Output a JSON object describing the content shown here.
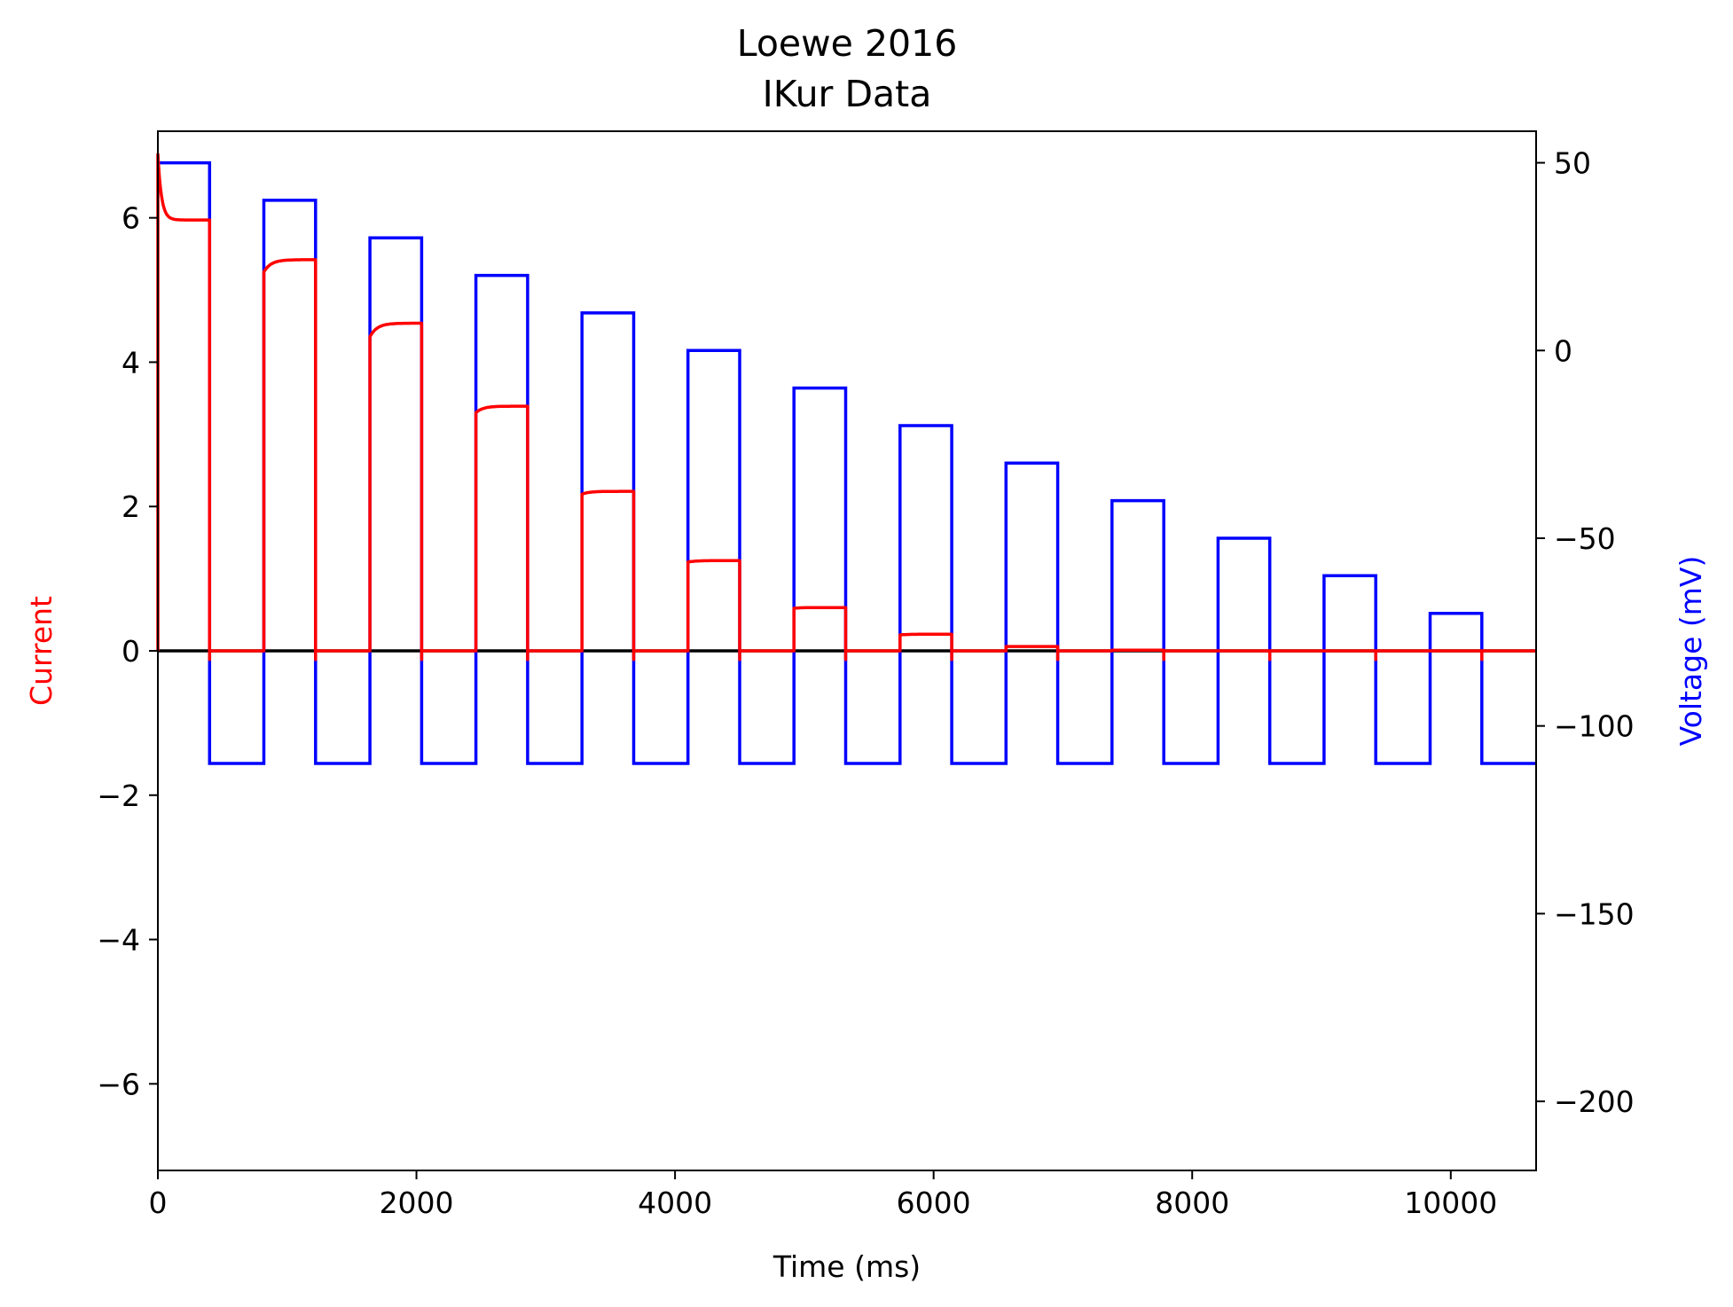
{
  "chart_data": {
    "type": "line",
    "title": "Loewe 2016",
    "subtitle": "IKur Data",
    "xlabel": "Time (ms)",
    "ylabel_left": "Current",
    "ylabel_right": "Voltage (mV)",
    "xlim": [
      0,
      10660
    ],
    "ylim_left": [
      -7.2,
      7.2
    ],
    "ylim_right": [
      -218.4,
      58.4
    ],
    "x_ticks": [
      0,
      2000,
      4000,
      6000,
      8000,
      10000
    ],
    "x_tick_labels": [
      "0",
      "2000",
      "4000",
      "6000",
      "8000",
      "10000"
    ],
    "y_left_ticks": [
      -6,
      -4,
      -2,
      0,
      2,
      4,
      6
    ],
    "y_left_tick_labels": [
      "−6",
      "−4",
      "−2",
      "0",
      "2",
      "4",
      "6"
    ],
    "y_right_ticks": [
      -200,
      -150,
      -100,
      -50,
      0,
      50
    ],
    "y_right_tick_labels": [
      "−200",
      "−150",
      "−100",
      "−50",
      "0",
      "50"
    ],
    "grid": false,
    "colors": {
      "current": "#ff0000",
      "voltage": "#0000ff",
      "zero_line": "#000000",
      "axes": "#000000",
      "background": "#ffffff"
    },
    "protocol": {
      "pulse_duration_ms": 400,
      "holding_duration_ms": 420,
      "holding_voltage_mV": -110,
      "step_voltages_mV": [
        50,
        40,
        30,
        20,
        10,
        0,
        -10,
        -20,
        -30,
        -40,
        -50,
        -60,
        -70
      ],
      "steady_currents": [
        5.97,
        5.42,
        4.54,
        3.39,
        2.21,
        1.25,
        0.6,
        0.23,
        0.06,
        0.01,
        0.0,
        0.0,
        0.0
      ],
      "initial_currents": [
        6.88,
        5.25,
        4.35,
        3.3,
        2.17,
        1.23,
        0.59,
        0.22,
        0.06,
        0.01,
        0.0,
        0.0,
        0.0
      ]
    },
    "series": [
      {
        "axis": "left",
        "role": "zero-line"
      },
      {
        "axis": "right",
        "role": "voltage"
      },
      {
        "axis": "left",
        "role": "current"
      }
    ]
  }
}
